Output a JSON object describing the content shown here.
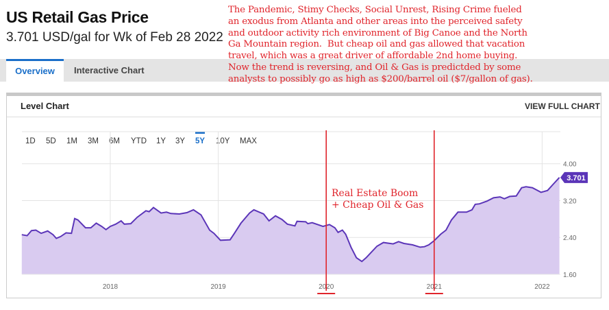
{
  "header": {
    "title": "US Retail Gas Price",
    "subtitle": "3.701 USD/gal for Wk of Feb 28 2022"
  },
  "tabs": [
    {
      "label": "Overview",
      "active": true
    },
    {
      "label": "Interactive Chart",
      "active": false
    }
  ],
  "annotation": {
    "lines": [
      "The Pandemic, Stimy Checks, Social Unrest, Rising Crime fueled",
      "an exodus from Atlanta and other areas into the perceived safety",
      "and outdoor activity rich environment of Big Canoe and the North",
      "Ga Mountain region.  But cheap oil and gas allowed that vacation",
      "travel, which was a great driver of affordable 2nd home buying.",
      "Now the trend is reversing, and Oil & Gas is predictded by some",
      "analysts to possibly go as high as $200/barrel oil ($7/gallon of gas)."
    ],
    "boom_line1": "Real Estate Boom",
    "boom_line2": "+ Cheap Oil & Gas",
    "marker_years": [
      2020,
      2021
    ],
    "color": "#e0242b"
  },
  "panel": {
    "title": "Level Chart",
    "view_full": "VIEW FULL CHART",
    "ranges": [
      "1D",
      "5D",
      "1M",
      "3M",
      "6M",
      "YTD",
      "1Y",
      "3Y",
      "5Y",
      "10Y",
      "MAX"
    ],
    "active_range": "5Y"
  },
  "chart_data": {
    "type": "area",
    "title": "US Retail Gas Price",
    "ylabel": "USD/gal",
    "xlim": [
      2017.18,
      2022.17
    ],
    "ylim": [
      1.6,
      4.0
    ],
    "x_ticks": [
      2018,
      2019,
      2020,
      2021,
      2022
    ],
    "y_ticks": [
      "1.60",
      "2.40",
      "3.20",
      "4.00"
    ],
    "last_value": "3.701",
    "line_color": "#5b35b8",
    "fill_color": "#d9cbf0",
    "points": [
      [
        2017.18,
        2.46
      ],
      [
        2017.23,
        2.44
      ],
      [
        2017.27,
        2.55
      ],
      [
        2017.31,
        2.56
      ],
      [
        2017.36,
        2.49
      ],
      [
        2017.42,
        2.54
      ],
      [
        2017.47,
        2.46
      ],
      [
        2017.5,
        2.38
      ],
      [
        2017.54,
        2.42
      ],
      [
        2017.59,
        2.5
      ],
      [
        2017.64,
        2.49
      ],
      [
        2017.67,
        2.81
      ],
      [
        2017.7,
        2.78
      ],
      [
        2017.77,
        2.61
      ],
      [
        2017.82,
        2.61
      ],
      [
        2017.87,
        2.71
      ],
      [
        2017.92,
        2.64
      ],
      [
        2017.96,
        2.57
      ],
      [
        2018.0,
        2.64
      ],
      [
        2018.05,
        2.69
      ],
      [
        2018.1,
        2.76
      ],
      [
        2018.13,
        2.69
      ],
      [
        2018.19,
        2.7
      ],
      [
        2018.25,
        2.84
      ],
      [
        2018.33,
        2.98
      ],
      [
        2018.36,
        2.96
      ],
      [
        2018.4,
        3.05
      ],
      [
        2018.47,
        2.93
      ],
      [
        2018.52,
        2.95
      ],
      [
        2018.56,
        2.92
      ],
      [
        2018.64,
        2.91
      ],
      [
        2018.71,
        2.94
      ],
      [
        2018.77,
        3.0
      ],
      [
        2018.84,
        2.89
      ],
      [
        2018.92,
        2.56
      ],
      [
        2018.96,
        2.49
      ],
      [
        2019.02,
        2.34
      ],
      [
        2019.11,
        2.35
      ],
      [
        2019.15,
        2.49
      ],
      [
        2019.21,
        2.71
      ],
      [
        2019.29,
        2.93
      ],
      [
        2019.33,
        3.0
      ],
      [
        2019.42,
        2.91
      ],
      [
        2019.47,
        2.76
      ],
      [
        2019.53,
        2.87
      ],
      [
        2019.59,
        2.79
      ],
      [
        2019.64,
        2.69
      ],
      [
        2019.71,
        2.65
      ],
      [
        2019.73,
        2.75
      ],
      [
        2019.81,
        2.74
      ],
      [
        2019.83,
        2.7
      ],
      [
        2019.87,
        2.72
      ],
      [
        2019.97,
        2.64
      ],
      [
        2020.03,
        2.68
      ],
      [
        2020.08,
        2.61
      ],
      [
        2020.11,
        2.51
      ],
      [
        2020.15,
        2.56
      ],
      [
        2020.18,
        2.47
      ],
      [
        2020.23,
        2.19
      ],
      [
        2020.28,
        1.96
      ],
      [
        2020.33,
        1.88
      ],
      [
        2020.37,
        1.96
      ],
      [
        2020.41,
        2.06
      ],
      [
        2020.47,
        2.21
      ],
      [
        2020.53,
        2.29
      ],
      [
        2020.62,
        2.26
      ],
      [
        2020.67,
        2.31
      ],
      [
        2020.72,
        2.27
      ],
      [
        2020.8,
        2.24
      ],
      [
        2020.87,
        2.19
      ],
      [
        2020.91,
        2.2
      ],
      [
        2020.95,
        2.24
      ],
      [
        2021.0,
        2.33
      ],
      [
        2021.06,
        2.47
      ],
      [
        2021.11,
        2.56
      ],
      [
        2021.16,
        2.78
      ],
      [
        2021.22,
        2.95
      ],
      [
        2021.3,
        2.95
      ],
      [
        2021.35,
        3.0
      ],
      [
        2021.38,
        3.12
      ],
      [
        2021.42,
        3.13
      ],
      [
        2021.49,
        3.19
      ],
      [
        2021.55,
        3.26
      ],
      [
        2021.61,
        3.28
      ],
      [
        2021.65,
        3.24
      ],
      [
        2021.7,
        3.29
      ],
      [
        2021.76,
        3.3
      ],
      [
        2021.81,
        3.48
      ],
      [
        2021.85,
        3.5
      ],
      [
        2021.91,
        3.48
      ],
      [
        2021.99,
        3.38
      ],
      [
        2022.05,
        3.42
      ],
      [
        2022.1,
        3.55
      ],
      [
        2022.16,
        3.701
      ]
    ]
  }
}
